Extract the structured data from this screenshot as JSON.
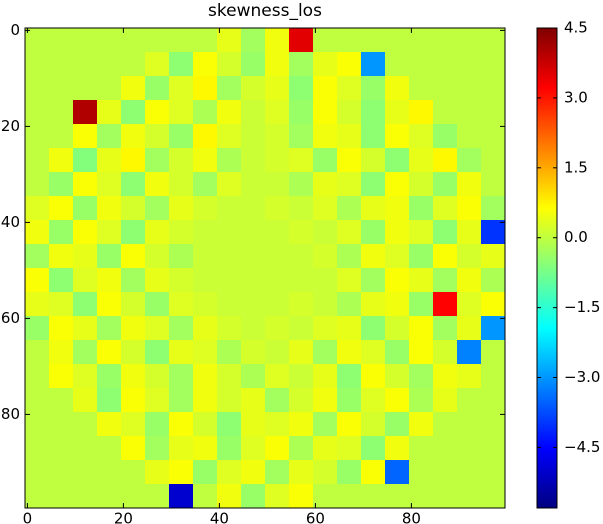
{
  "chart_data": {
    "type": "heatmap",
    "title": "skewness_los",
    "xlim": [
      -0.5,
      99.5
    ],
    "ylim": [
      99.5,
      -0.5
    ],
    "xticks": [
      0,
      20,
      40,
      60,
      80
    ],
    "yticks": [
      0,
      20,
      40,
      60,
      80
    ],
    "colormap": "jet",
    "colorbar": {
      "lim": [
        -5.8,
        4.5
      ],
      "ticks": [
        4.5,
        {
          "value": 3,
          "label": "3.0"
        },
        1.5,
        {
          "value": 0,
          "label": "0.0"
        },
        {
          "value": -1.5,
          "label": "−1.5"
        },
        {
          "value": -3,
          "label": "−3.0"
        },
        {
          "value": -4.5,
          "label": "−4.5"
        }
      ]
    },
    "z": [
      [
        0,
        0,
        0,
        0,
        0,
        0,
        0,
        0,
        0.4,
        -0.3,
        0.5,
        3.5,
        0,
        0,
        0,
        0,
        0,
        0,
        0,
        0
      ],
      [
        0,
        0,
        0,
        0,
        0,
        0.3,
        -0.5,
        0.6,
        0.2,
        -0.4,
        0.5,
        -0.3,
        0.4,
        0.6,
        -3,
        0,
        0,
        0,
        0,
        0
      ],
      [
        0,
        0,
        0,
        0,
        0.5,
        -0.4,
        0.3,
        0.7,
        -0.3,
        0.2,
        0.4,
        -0.5,
        0.6,
        0.3,
        -0.4,
        0.5,
        0,
        0,
        0,
        0
      ],
      [
        0,
        0,
        4.0,
        0.4,
        -0.5,
        0.6,
        0.3,
        -0.2,
        0.5,
        0.1,
        0.3,
        -0.4,
        0.6,
        0.2,
        -0.5,
        0.4,
        0.7,
        0,
        0,
        0
      ],
      [
        0,
        0,
        0.6,
        -0.3,
        0.5,
        0.2,
        -0.4,
        0.7,
        0.3,
        0.1,
        0.2,
        -0.3,
        0.5,
        0.4,
        -0.5,
        0.6,
        0.3,
        -0.4,
        0,
        0
      ],
      [
        0,
        0.5,
        -0.6,
        0.4,
        0.7,
        -0.3,
        0.2,
        0.5,
        -0.2,
        0.1,
        0.2,
        0.3,
        -0.4,
        0.6,
        0.2,
        -0.5,
        0.4,
        0.7,
        -0.3,
        0
      ],
      [
        0,
        -0.4,
        0.6,
        0.3,
        -0.5,
        0.5,
        0.2,
        -0.3,
        0.3,
        0.1,
        0.1,
        -0.2,
        0.4,
        0.3,
        -0.5,
        0.6,
        0.2,
        -0.4,
        0.5,
        0
      ],
      [
        0.3,
        0.6,
        -0.4,
        0.5,
        0.2,
        -0.3,
        0.4,
        0.2,
        0.1,
        0.1,
        0.2,
        0.1,
        0.3,
        -0.2,
        0.4,
        0.5,
        -0.4,
        0.3,
        0.6,
        -0.3
      ],
      [
        0.5,
        -0.4,
        0.6,
        0.3,
        -0.5,
        0.4,
        0.2,
        0.1,
        0.1,
        0.1,
        0.1,
        0.2,
        0.1,
        0.3,
        -0.4,
        0.5,
        0.3,
        -0.5,
        0.4,
        -4
      ],
      [
        -0.3,
        0.5,
        0.4,
        -0.4,
        0.6,
        0.2,
        -0.2,
        0.1,
        0.1,
        0.1,
        0.1,
        0.1,
        0.2,
        -0.2,
        0.5,
        0.3,
        -0.4,
        0.6,
        0.2,
        0.4
      ],
      [
        0.6,
        -0.5,
        0.3,
        0.5,
        -0.3,
        0.4,
        0.2,
        0.1,
        0.1,
        0.1,
        0.1,
        0.1,
        0.1,
        0.3,
        -0.3,
        0.6,
        0.4,
        -0.3,
        0.5,
        -0.2
      ],
      [
        0.4,
        0.3,
        -0.5,
        0.6,
        0.2,
        -0.4,
        0.3,
        0.2,
        0.1,
        0.1,
        0.1,
        0.2,
        0.1,
        -0.2,
        0.4,
        0.5,
        -0.4,
        3.2,
        0.3,
        0.6
      ],
      [
        -0.4,
        0.6,
        0.4,
        -0.3,
        0.5,
        0.3,
        -0.3,
        0.4,
        0.2,
        0.1,
        0.2,
        0.1,
        0.3,
        0.4,
        -0.5,
        0.2,
        0.6,
        -0.3,
        0.4,
        -3
      ],
      [
        0,
        0.5,
        -0.3,
        0.6,
        0.2,
        -0.5,
        0.4,
        0.3,
        -0.2,
        0.2,
        0.1,
        0.4,
        -0.3,
        0.5,
        0.3,
        -0.4,
        0.6,
        0.2,
        -3.2,
        0
      ],
      [
        0,
        0.6,
        0.3,
        -0.4,
        0.5,
        0.2,
        -0.3,
        0.5,
        0.2,
        -0.2,
        0.3,
        0.1,
        0.4,
        -0.5,
        0.6,
        0.2,
        -0.3,
        0.5,
        0.4,
        0
      ],
      [
        0,
        0,
        0.4,
        -0.5,
        0.6,
        0.3,
        -0.3,
        0.5,
        0.2,
        0.4,
        -0.3,
        0.2,
        0.5,
        -0.4,
        0.3,
        0.6,
        -0.2,
        0.4,
        0,
        0
      ],
      [
        0,
        0,
        0,
        0.5,
        0.3,
        -0.4,
        0.6,
        0.2,
        -0.5,
        0.4,
        0.3,
        0.5,
        -0.3,
        0.6,
        0.2,
        -0.4,
        0.5,
        0,
        0,
        0
      ],
      [
        0,
        0,
        0,
        0,
        0.6,
        -0.3,
        0.4,
        0.5,
        -0.4,
        0.3,
        0.6,
        -0.2,
        0.4,
        0.3,
        -0.5,
        0.5,
        0,
        0,
        0,
        0
      ],
      [
        0,
        0,
        0,
        0,
        0,
        0.4,
        0.6,
        -0.4,
        0.3,
        0.5,
        -0.3,
        0.4,
        0.2,
        -0.4,
        0.6,
        -3.5,
        0,
        0,
        0,
        0
      ],
      [
        0,
        0,
        0,
        0,
        0,
        0,
        -5,
        0,
        0.5,
        -0.4,
        0.3,
        0.6,
        0,
        0,
        0,
        0,
        0,
        0,
        0,
        0
      ]
    ]
  }
}
